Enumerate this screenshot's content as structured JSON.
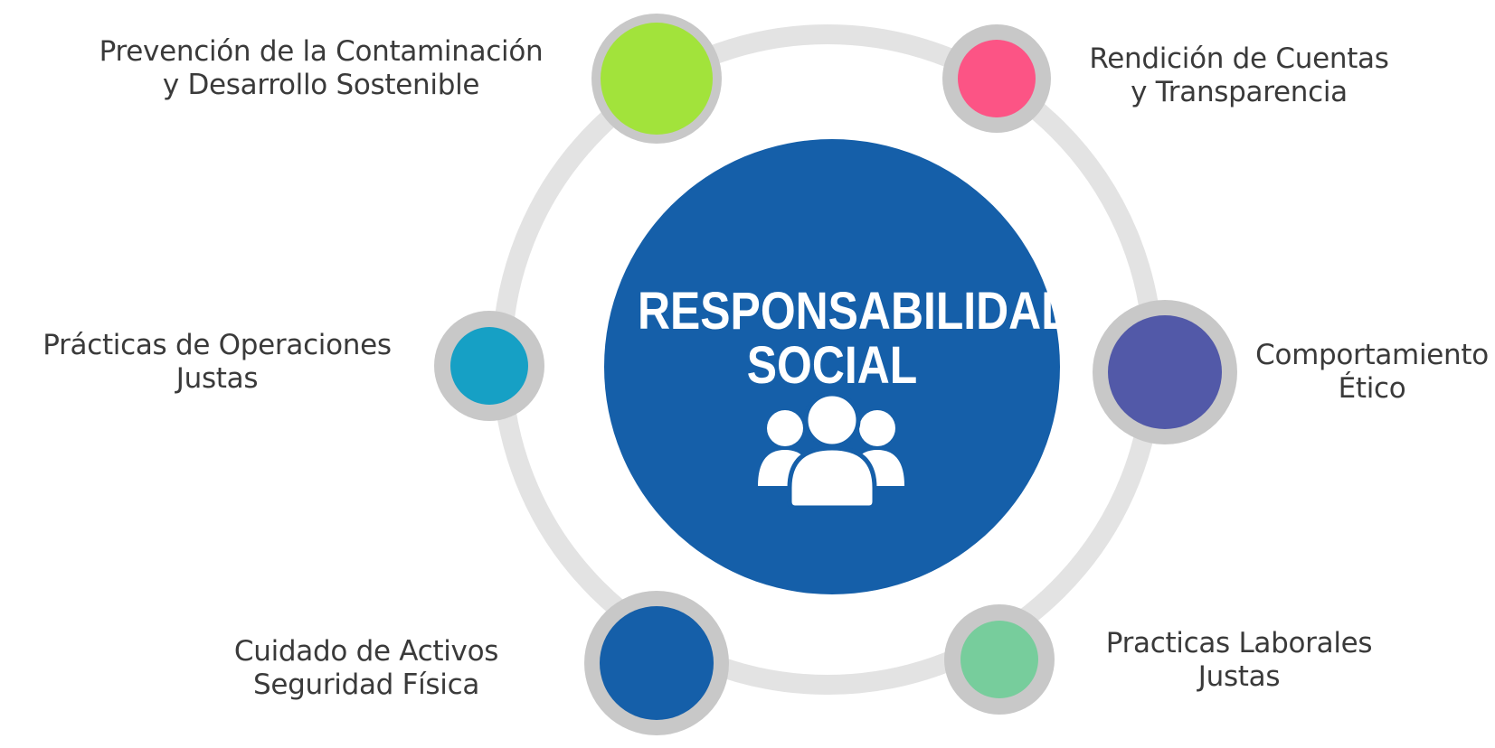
{
  "center": {
    "title_line1": "RESPONSABILIDAD",
    "title_line2": "SOCIAL",
    "icon": "people-group-icon"
  },
  "nodes": [
    {
      "id": "prevencion",
      "line1": "Prevención de la Contaminación",
      "line2": "y Desarrollo Sostenible",
      "color": "#a2e33b"
    },
    {
      "id": "rendicion",
      "line1": "Rendición de Cuentas",
      "line2": "y Transparencia",
      "color": "#fc5485"
    },
    {
      "id": "comportamiento",
      "line1": "Comportamiento",
      "line2": "Ético",
      "color": "#5259a8"
    },
    {
      "id": "laborales",
      "line1": "Practicas Laborales",
      "line2": "Justas",
      "color": "#77cd9c"
    },
    {
      "id": "activos",
      "line1": "Cuidado de Activos",
      "line2": "Seguridad Física",
      "color": "#155fa9"
    },
    {
      "id": "operaciones",
      "line1": "Prácticas de Operaciones",
      "line2": "Justas",
      "color": "#16a0c5"
    }
  ],
  "colors": {
    "ring": "#e3e3e3",
    "node_border": "#c8c8c8",
    "center": "#155fa9",
    "text": "#3a3a3a"
  }
}
